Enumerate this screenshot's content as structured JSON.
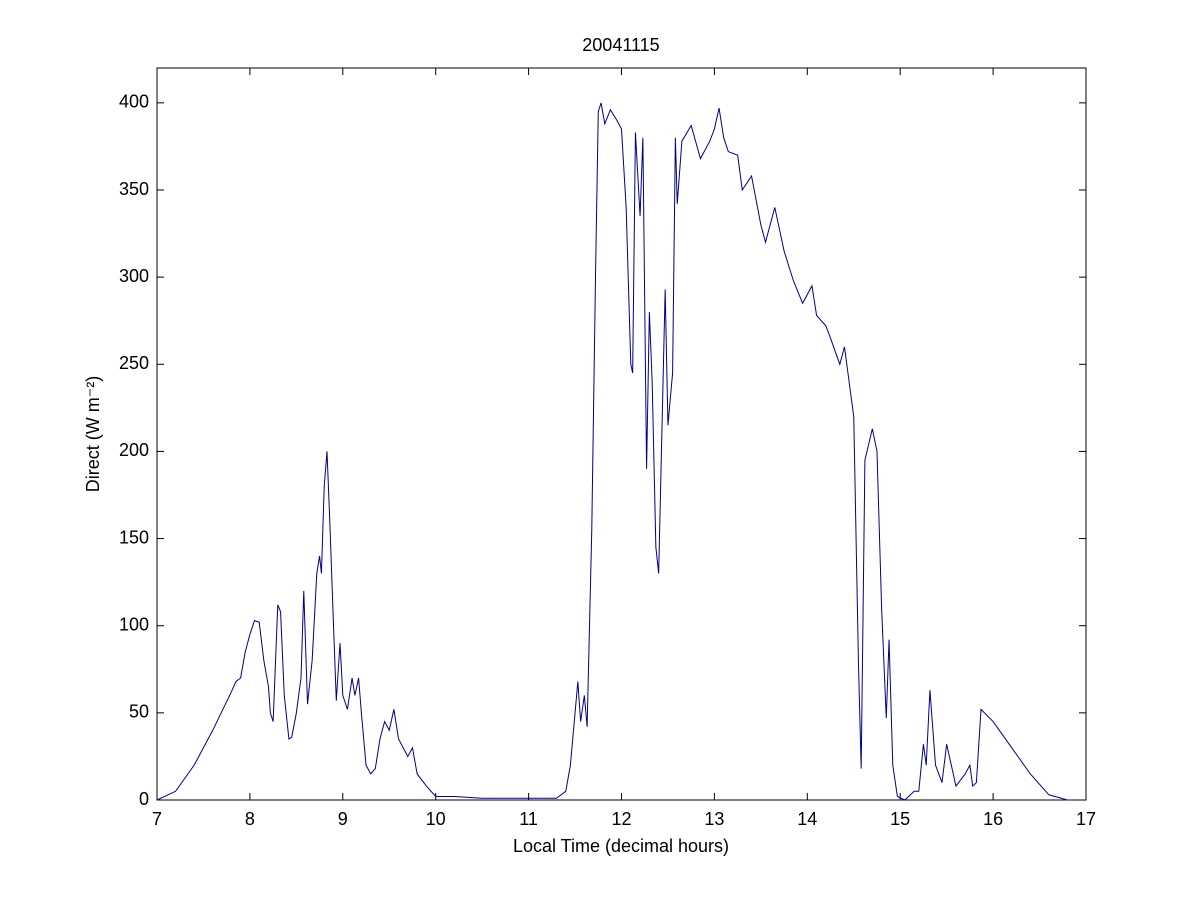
{
  "chart_data": {
    "type": "line",
    "title": "20041115",
    "xlabel": "Local Time (decimal hours)",
    "ylabel": "Direct (W m⁻²)",
    "color": "#00008b",
    "grid": false,
    "xlim": [
      7,
      17
    ],
    "xticks": [
      7,
      8,
      9,
      10,
      11,
      12,
      13,
      14,
      15,
      16,
      17
    ],
    "ylim": [
      0,
      420
    ],
    "yticks": [
      0,
      50,
      100,
      150,
      200,
      250,
      300,
      350,
      400
    ],
    "x": [
      7.0,
      7.2,
      7.4,
      7.6,
      7.8,
      7.85,
      7.9,
      7.95,
      8.0,
      8.05,
      8.1,
      8.15,
      8.2,
      8.22,
      8.25,
      8.3,
      8.33,
      8.37,
      8.42,
      8.45,
      8.5,
      8.55,
      8.58,
      8.62,
      8.67,
      8.72,
      8.75,
      8.77,
      8.8,
      8.83,
      8.86,
      8.9,
      8.93,
      8.97,
      9.0,
      9.05,
      9.1,
      9.13,
      9.17,
      9.2,
      9.25,
      9.3,
      9.35,
      9.4,
      9.45,
      9.5,
      9.55,
      9.6,
      9.65,
      9.7,
      9.75,
      9.8,
      9.9,
      10.0,
      10.2,
      10.5,
      11.0,
      11.3,
      11.4,
      11.45,
      11.5,
      11.53,
      11.56,
      11.6,
      11.63,
      11.68,
      11.72,
      11.75,
      11.78,
      11.82,
      11.88,
      11.95,
      12.0,
      12.05,
      12.1,
      12.12,
      12.15,
      12.2,
      12.23,
      12.27,
      12.3,
      12.33,
      12.37,
      12.4,
      12.43,
      12.47,
      12.5,
      12.55,
      12.58,
      12.6,
      12.65,
      12.75,
      12.85,
      12.95,
      13.0,
      13.05,
      13.1,
      13.15,
      13.25,
      13.3,
      13.4,
      13.5,
      13.55,
      13.65,
      13.75,
      13.85,
      13.95,
      14.05,
      14.1,
      14.2,
      14.25,
      14.35,
      14.4,
      14.45,
      14.5,
      14.55,
      14.58,
      14.62,
      14.7,
      14.75,
      14.8,
      14.85,
      14.88,
      14.92,
      14.97,
      15.05,
      15.15,
      15.2,
      15.25,
      15.28,
      15.32,
      15.38,
      15.45,
      15.5,
      15.55,
      15.6,
      15.7,
      15.75,
      15.78,
      15.82,
      15.87,
      16.0,
      16.2,
      16.4,
      16.6,
      16.8,
      16.85
    ],
    "values": [
      0,
      5,
      20,
      40,
      62,
      68,
      70,
      85,
      95,
      103,
      102,
      80,
      65,
      50,
      45,
      112,
      108,
      60,
      35,
      36,
      50,
      70,
      120,
      55,
      80,
      130,
      140,
      130,
      180,
      200,
      160,
      100,
      57,
      90,
      60,
      52,
      70,
      60,
      70,
      50,
      20,
      15,
      18,
      35,
      45,
      40,
      52,
      35,
      30,
      25,
      30,
      15,
      8,
      2,
      2,
      1,
      1,
      1,
      5,
      20,
      50,
      68,
      45,
      60,
      42,
      155,
      300,
      395,
      400,
      388,
      396,
      390,
      385,
      340,
      250,
      245,
      383,
      335,
      380,
      190,
      280,
      240,
      145,
      130,
      200,
      293,
      215,
      245,
      380,
      342,
      378,
      387,
      368,
      378,
      385,
      397,
      380,
      372,
      370,
      350,
      358,
      330,
      320,
      340,
      315,
      298,
      285,
      295,
      278,
      272,
      265,
      250,
      260,
      240,
      220,
      80,
      18,
      195,
      213,
      200,
      110,
      47,
      92,
      20,
      2,
      0,
      5,
      5,
      32,
      20,
      63,
      20,
      10,
      32,
      20,
      8,
      15,
      20,
      8,
      10,
      52,
      45,
      30,
      15,
      3,
      0,
      0
    ]
  }
}
